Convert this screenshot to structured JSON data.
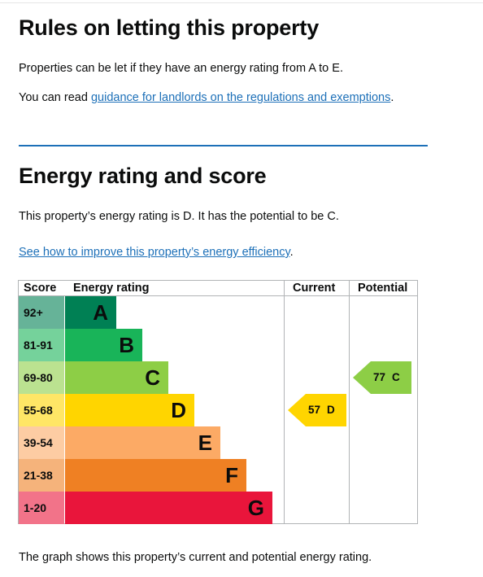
{
  "rules": {
    "heading": "Rules on letting this property",
    "text1": "Properties can be let if they have an energy rating from A to E.",
    "text2_prefix": "You can read ",
    "text2_link": "guidance for landlords on the regulations and exemptions",
    "text2_suffix": "."
  },
  "energy": {
    "heading": "Energy rating and score",
    "summary": "This property’s energy rating is D. It has the potential to be C.",
    "improve_link": "See how to improve this property’s energy efficiency",
    "improve_suffix": ".",
    "footer": "The graph shows this property’s current and potential energy rating."
  },
  "table": {
    "headers": {
      "score": "Score",
      "rating": "Energy rating",
      "current": "Current",
      "potential": "Potential"
    },
    "bands": [
      {
        "score": "92+",
        "letter": "A",
        "bar_color": "#008054",
        "score_color": "#66b398"
      },
      {
        "score": "81-91",
        "letter": "B",
        "bar_color": "#19b459",
        "score_color": "#75d29b"
      },
      {
        "score": "69-80",
        "letter": "C",
        "bar_color": "#8dce46",
        "score_color": "#bbe290"
      },
      {
        "score": "55-68",
        "letter": "D",
        "bar_color": "#ffd500",
        "score_color": "#ffe666"
      },
      {
        "score": "39-54",
        "letter": "E",
        "bar_color": "#fcaa65",
        "score_color": "#fdcca3"
      },
      {
        "score": "21-38",
        "letter": "F",
        "bar_color": "#ef8023",
        "score_color": "#f5b37b"
      },
      {
        "score": "1-20",
        "letter": "G",
        "bar_color": "#e9153b",
        "score_color": "#f27389"
      }
    ],
    "current": {
      "score": "57",
      "letter": "D",
      "band_index": 3,
      "color": "#ffd500"
    },
    "potential": {
      "score": "77",
      "letter": "C",
      "band_index": 2,
      "color": "#8dce46"
    }
  }
}
